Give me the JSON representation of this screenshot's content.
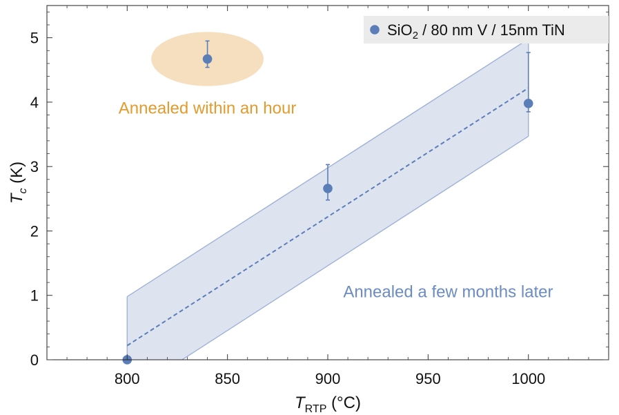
{
  "chart_data": {
    "type": "scatter",
    "title": "",
    "xlabel": {
      "main": "T",
      "sub": "RTP",
      "units": " (°C)"
    },
    "ylabel": {
      "main": "T",
      "sub": "c",
      "units": " (K)"
    },
    "xlim": [
      760,
      1040
    ],
    "ylim": [
      0,
      5.5
    ],
    "xticks": [
      800,
      850,
      900,
      950,
      1000
    ],
    "yticks": [
      0,
      1,
      2,
      3,
      4,
      5
    ],
    "grid": false,
    "legend": {
      "placement": "top-right",
      "entries": [
        {
          "series": "SiO2 / 80 nm V / 15nm TiN",
          "parts": [
            {
              "text": "SiO",
              "sub": false
            },
            {
              "text": "2",
              "sub": true
            },
            {
              "text": " / 80 nm V / 15nm TiN",
              "sub": false
            }
          ]
        }
      ]
    },
    "series": [
      {
        "name": "SiO2 / 80 nm V / 15nm TiN",
        "color": "#5b7db8",
        "points": [
          {
            "x": 800,
            "y": 0.0,
            "err_low": 0.0,
            "err_high": 0.0
          },
          {
            "x": 840,
            "y": 4.67,
            "err_low": 0.13,
            "err_high": 0.28
          },
          {
            "x": 900,
            "y": 2.66,
            "err_low": 0.18,
            "err_high": 0.37
          },
          {
            "x": 1000,
            "y": 3.98,
            "err_low": 0.13,
            "err_high": 0.79
          }
        ]
      }
    ],
    "fit": {
      "style": "dashed",
      "color": "#5b7db8",
      "x": [
        800,
        1000
      ],
      "y": [
        0.22,
        4.22
      ]
    },
    "confidence_band": {
      "color": "#dde4f0",
      "edge_color": "#9fb2d6",
      "x": [
        800,
        1000
      ],
      "upper": [
        0.98,
        4.98
      ],
      "lower": [
        -0.55,
        3.47
      ]
    },
    "highlight": {
      "color": "#f5dfbf",
      "center_x": 840,
      "center_y": 4.67,
      "radius_x": 28,
      "radius_y": 0.42
    },
    "annotations": [
      {
        "text": "Annealed within an hour",
        "color": "#e39b2e",
        "x": 840,
        "y": 3.82
      },
      {
        "text": "Annealed a few months later",
        "color": "#6c8cc1",
        "x": 960,
        "y": 0.97
      }
    ]
  }
}
